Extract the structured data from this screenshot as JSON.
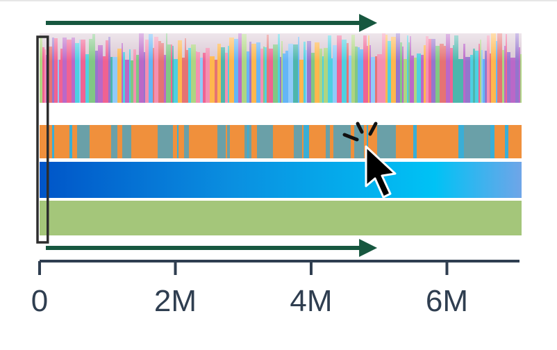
{
  "axis": {
    "ticks": [
      {
        "value": 0,
        "label": "0"
      },
      {
        "value": 2000000,
        "label": "2M"
      },
      {
        "value": 4000000,
        "label": "4M"
      },
      {
        "value": 6000000,
        "label": "6M"
      }
    ],
    "range": [
      0,
      7100000
    ],
    "color": "#2f3e50"
  },
  "arrows": {
    "end_value": 4850000,
    "color": "#17573f"
  },
  "tracks": {
    "multicolor_palette": [
      "#e57373",
      "#81c784",
      "#64b5f6",
      "#ba68c8",
      "#4dd0e1",
      "#f06292",
      "#aed581",
      "#ffb74d",
      "#9575cd",
      "#4db6ac",
      "#f48fb1",
      "#90caf9"
    ],
    "two_tone_colors": [
      "#f0903c",
      "#6aa0a8",
      "#3aaed6"
    ],
    "gradient_colors": [
      "#0055c8",
      "#0a8fe0",
      "#00c2f5",
      "#6fa5e8"
    ],
    "green_color": "#a4c67a"
  },
  "selection": {
    "start_value": 0,
    "end_value": 110000,
    "color": "#2d2d2d"
  },
  "cursor": {
    "icon": "click-cursor-icon"
  }
}
